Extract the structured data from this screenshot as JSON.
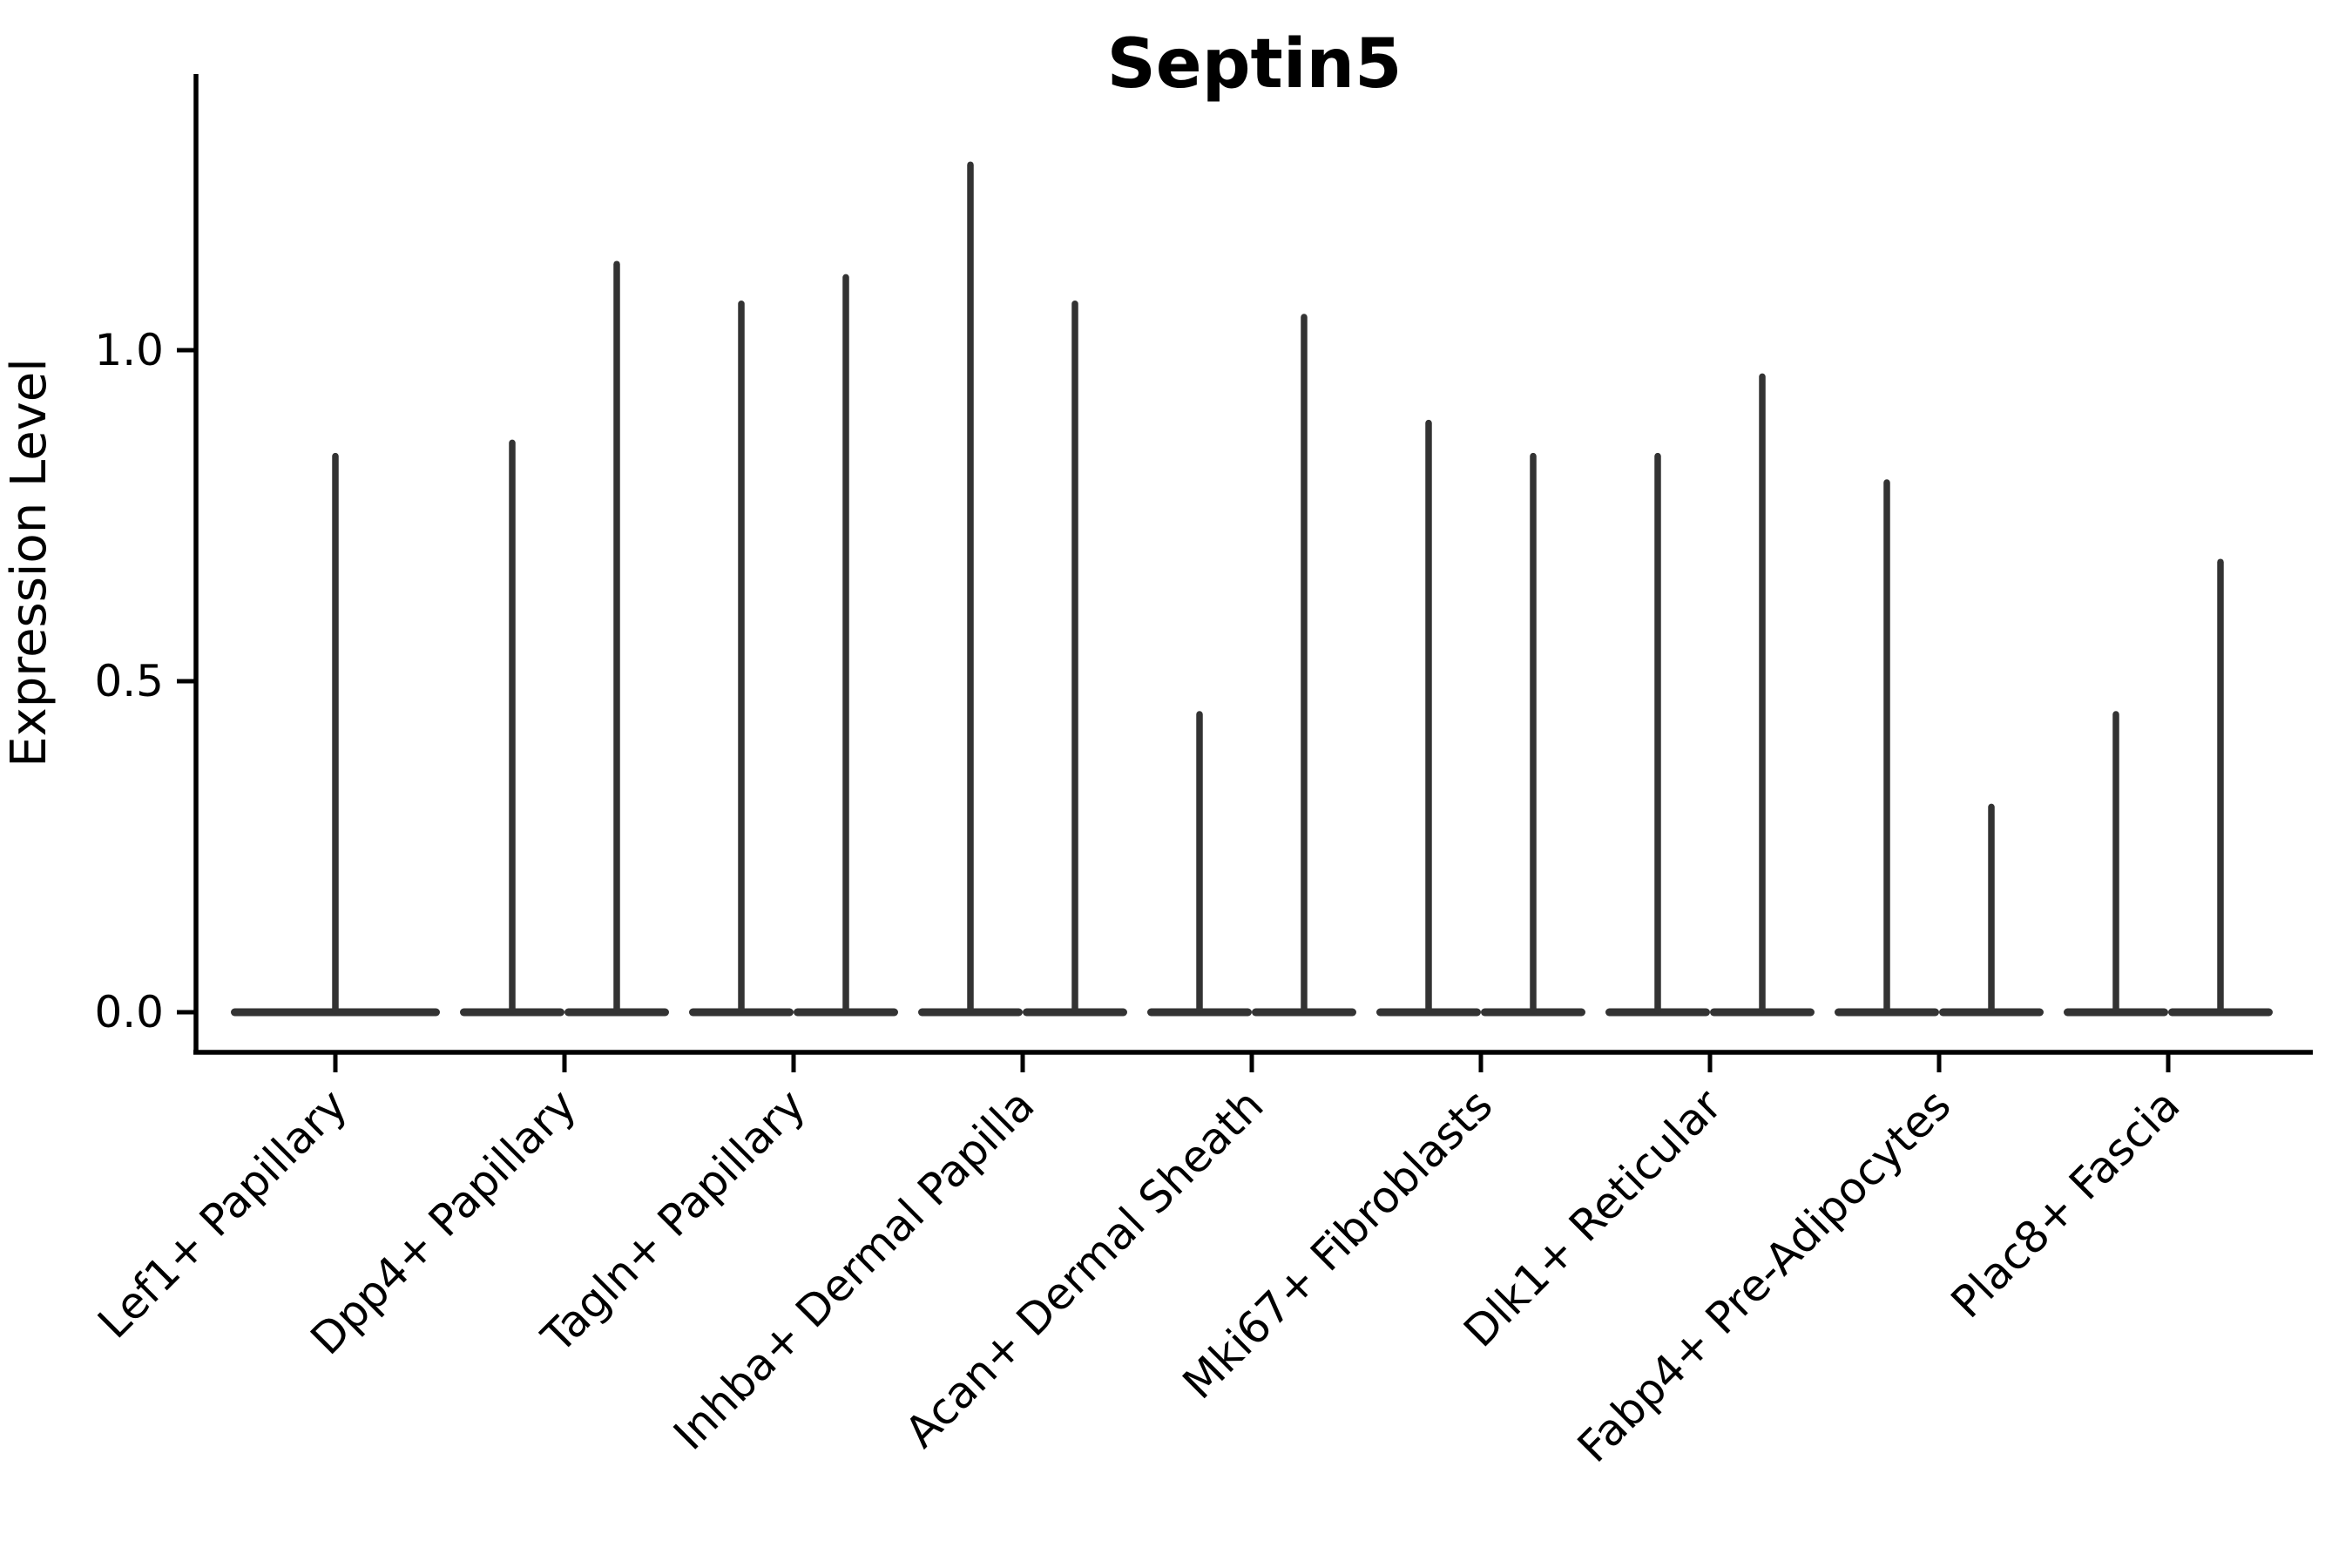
{
  "title": "Septin5",
  "y_axis": {
    "label": "Expression Level",
    "ticks": [
      "0.0",
      "0.5",
      "1.0"
    ],
    "tick_values": [
      0.0,
      0.5,
      1.0
    ]
  },
  "x_axis": {
    "categories": [
      "Lef1+ Papillary",
      "Dpp4+ Papillary",
      "Tagln+ Papillary",
      "Inhba+ Dermal Papilla",
      "Acan+ Dermal Sheath",
      "Mki67+ Fibroblasts",
      "Dlk1+ Reticular",
      "Fabp4+ Pre-Adipocytes",
      "Plac8+ Fascia"
    ]
  },
  "colors": {
    "violin": "#333333",
    "axis": "#000000",
    "background": "#ffffff"
  },
  "chart_data": {
    "type": "violin",
    "title": "Septin5",
    "xlabel": "",
    "ylabel": "Expression Level",
    "ylim": [
      -0.06,
      1.42
    ],
    "yticks": [
      0.0,
      0.5,
      1.0
    ],
    "grid": false,
    "legend": "none",
    "description": "Spike-shaped violins: wide flat density blob at expression 0 with one or two thin spikes reaching the maximum expression value(s); two spikes indicate two side-by-side violins in that category.",
    "categories": [
      "Lef1+ Papillary",
      "Dpp4+ Papillary",
      "Tagln+ Papillary",
      "Inhba+ Dermal Papilla",
      "Acan+ Dermal Sheath",
      "Mki67+ Fibroblasts",
      "Dlk1+ Reticular",
      "Fabp4+ Pre-Adipocytes",
      "Plac8+ Fascia"
    ],
    "series": [
      {
        "category": "Lef1+ Papillary",
        "baseline": 0.0,
        "spike_maxima": [
          0.84
        ]
      },
      {
        "category": "Dpp4+ Papillary",
        "baseline": 0.0,
        "spike_maxima": [
          0.86,
          1.13
        ]
      },
      {
        "category": "Tagln+ Papillary",
        "baseline": 0.0,
        "spike_maxima": [
          1.07,
          1.11
        ]
      },
      {
        "category": "Inhba+ Dermal Papilla",
        "baseline": 0.0,
        "spike_maxima": [
          1.28,
          1.07
        ]
      },
      {
        "category": "Acan+ Dermal Sheath",
        "baseline": 0.0,
        "spike_maxima": [
          0.45,
          1.05
        ]
      },
      {
        "category": "Mki67+ Fibroblasts",
        "baseline": 0.0,
        "spike_maxima": [
          0.89,
          0.84
        ]
      },
      {
        "category": "Dlk1+ Reticular",
        "baseline": 0.0,
        "spike_maxima": [
          0.84,
          0.96
        ]
      },
      {
        "category": "Fabp4+ Pre-Adipocytes",
        "baseline": 0.0,
        "spike_maxima": [
          0.8,
          0.31
        ]
      },
      {
        "category": "Plac8+ Fascia",
        "baseline": 0.0,
        "spike_maxima": [
          0.45,
          0.68
        ]
      }
    ]
  }
}
